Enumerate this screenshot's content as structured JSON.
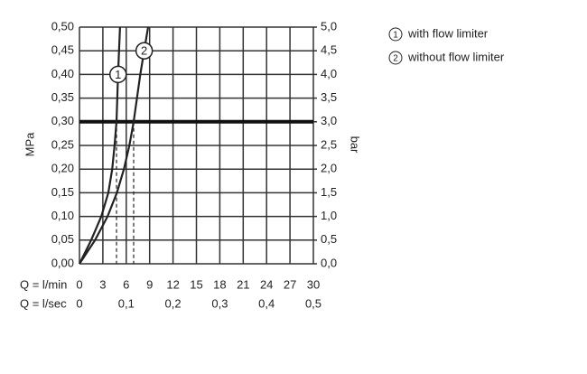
{
  "chart_data": {
    "type": "line",
    "xlabel": "Q = l/min",
    "x2label": "Q = l/sec",
    "ylabel": "MPa",
    "y2label": "bar",
    "xlim": [
      0,
      30
    ],
    "xticks": [
      0,
      3,
      6,
      9,
      12,
      15,
      18,
      21,
      24,
      27,
      30
    ],
    "x2lim": [
      0,
      0.5
    ],
    "x2ticks": [
      {
        "value": 0,
        "label": "0"
      },
      {
        "value": 0.1,
        "label": "0,1"
      },
      {
        "value": 0.2,
        "label": "0,2"
      },
      {
        "value": 0.3,
        "label": "0,3"
      },
      {
        "value": 0.4,
        "label": "0,4"
      },
      {
        "value": 0.5,
        "label": "0,5"
      }
    ],
    "ylim": [
      0,
      0.5
    ],
    "yticks": [
      {
        "value": 0,
        "label": "0,00"
      },
      {
        "value": 0.05,
        "label": "0,05"
      },
      {
        "value": 0.1,
        "label": "0,10"
      },
      {
        "value": 0.15,
        "label": "0,15"
      },
      {
        "value": 0.2,
        "label": "0,20"
      },
      {
        "value": 0.25,
        "label": "0,25"
      },
      {
        "value": 0.3,
        "label": "0,30"
      },
      {
        "value": 0.35,
        "label": "0,35"
      },
      {
        "value": 0.4,
        "label": "0,40"
      },
      {
        "value": 0.45,
        "label": "0,45"
      },
      {
        "value": 0.5,
        "label": "0,50"
      }
    ],
    "y2lim": [
      0,
      5
    ],
    "y2ticks": [
      {
        "value": 0,
        "label": "0,0"
      },
      {
        "value": 0.5,
        "label": "0,5"
      },
      {
        "value": 1,
        "label": "1,0"
      },
      {
        "value": 1.5,
        "label": "1,5"
      },
      {
        "value": 2,
        "label": "2,0"
      },
      {
        "value": 2.5,
        "label": "2,5"
      },
      {
        "value": 3,
        "label": "3,0"
      },
      {
        "value": 3.5,
        "label": "3,5"
      },
      {
        "value": 4,
        "label": "4,0"
      },
      {
        "value": 4.5,
        "label": "4,5"
      },
      {
        "value": 5,
        "label": "5,0"
      }
    ],
    "grid": true,
    "reference_y": 0.3,
    "series": [
      {
        "name": "with flow limiter",
        "marker": "1",
        "color": "#222222",
        "ref_x": 4.75,
        "x": [
          0,
          1.5,
          2.8,
          3.7,
          4.2,
          4.5,
          4.75,
          4.95,
          5.2
        ],
        "values": [
          0,
          0.05,
          0.1,
          0.15,
          0.2,
          0.25,
          0.3,
          0.4,
          0.5
        ]
      },
      {
        "name": "without flow limiter",
        "marker": "2",
        "color": "#222222",
        "ref_x": 6.95,
        "x": [
          0,
          2,
          3.6,
          4.8,
          5.7,
          6.4,
          6.95,
          7.8,
          8.3,
          8.8
        ],
        "values": [
          0,
          0.05,
          0.1,
          0.15,
          0.2,
          0.25,
          0.3,
          0.4,
          0.45,
          0.5
        ]
      }
    ]
  }
}
